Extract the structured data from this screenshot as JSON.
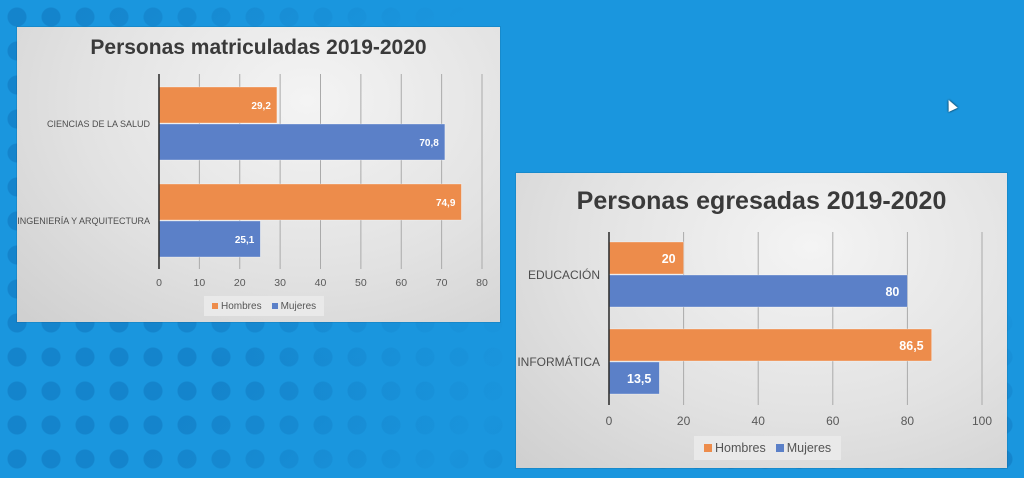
{
  "colors": {
    "hombres": "#ED8C4B",
    "mujeres": "#5B80C8",
    "background": "#1a96de",
    "axis": "#333333",
    "grid": "#aaaaaa"
  },
  "chart_data": [
    {
      "type": "bar",
      "orientation": "horizontal",
      "title": "Personas matriculadas 2019-2020",
      "categories": [
        "CIENCIAS DE LA SALUD",
        "INGENIERÍA Y ARQUITECTURA"
      ],
      "series": [
        {
          "name": "Hombres",
          "values": [
            29.2,
            74.9
          ],
          "labels": [
            "29,2",
            "74,9"
          ]
        },
        {
          "name": "Mujeres",
          "values": [
            70.8,
            25.1
          ],
          "labels": [
            "70,8",
            "25,1"
          ]
        }
      ],
      "xlim": [
        0,
        80
      ],
      "xticks": [
        0,
        10,
        20,
        30,
        40,
        50,
        60,
        70,
        80
      ],
      "xtick_labels": [
        "0",
        "10",
        "20",
        "30",
        "40",
        "50",
        "60",
        "70",
        "80"
      ],
      "grid": true,
      "legend": "bottom"
    },
    {
      "type": "bar",
      "orientation": "horizontal",
      "title": "Personas egresadas 2019-2020",
      "categories": [
        "EDUCACIÓN",
        "INFORMÁTICA"
      ],
      "series": [
        {
          "name": "Hombres",
          "values": [
            20,
            86.5
          ],
          "labels": [
            "20",
            "86,5"
          ]
        },
        {
          "name": "Mujeres",
          "values": [
            80,
            13.5
          ],
          "labels": [
            "80",
            "13,5"
          ]
        }
      ],
      "xlim": [
        0,
        100
      ],
      "xticks": [
        0,
        20,
        40,
        60,
        80,
        100
      ],
      "xtick_labels": [
        "0",
        "20",
        "40",
        "60",
        "80",
        "100"
      ],
      "grid": true,
      "legend": "bottom"
    }
  ]
}
